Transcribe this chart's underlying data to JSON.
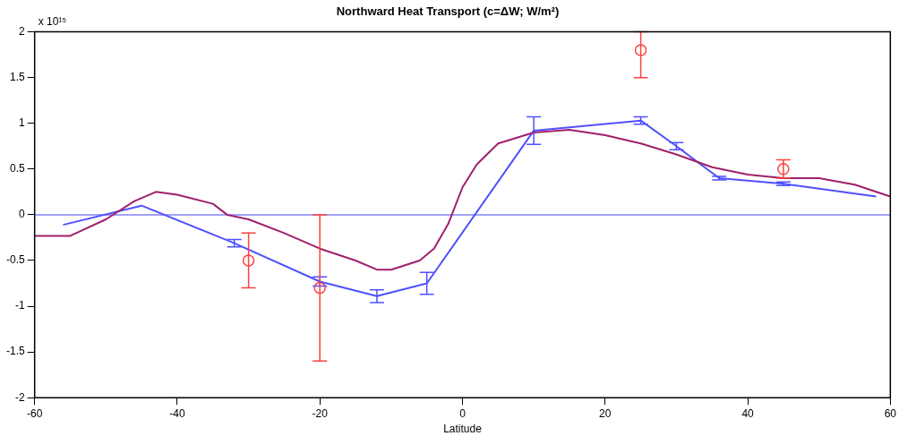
{
  "chart_data": {
    "type": "line",
    "title": "Northward Heat Transport (c=ΔW; W/m²)",
    "xlabel": "Latitude",
    "annotations": [
      "x 10¹⁵"
    ],
    "xlim": [
      -60,
      60
    ],
    "xticks": [
      -60,
      -40,
      -20,
      0,
      20,
      40,
      60
    ],
    "ylim": [
      -2,
      2
    ],
    "yticks": [
      -2,
      -1.5,
      -1,
      -0.5,
      0,
      0.5,
      1,
      1.5,
      2
    ],
    "grid": false,
    "legend": false,
    "ref_lines": [
      {
        "axis": "y",
        "value": 0,
        "color": "#8080ff"
      }
    ],
    "series": [
      {
        "color": "#a0206a",
        "marker": "none",
        "x": [
          -60,
          -55,
          -50,
          -46,
          -43,
          -40,
          -35,
          -33,
          -30,
          -25,
          -20,
          -15,
          -12,
          -10,
          -6,
          -4,
          -2,
          0,
          2,
          5,
          10,
          15,
          20,
          25,
          30,
          35,
          40,
          45,
          50,
          55,
          60
        ],
        "values": [
          -0.23,
          -0.23,
          -0.05,
          0.15,
          0.25,
          0.22,
          0.12,
          0,
          -0.05,
          -0.2,
          -0.37,
          -0.5,
          -0.6,
          -0.6,
          -0.5,
          -0.37,
          -0.1,
          0.3,
          0.55,
          0.78,
          0.9,
          0.93,
          0.87,
          0.78,
          0.66,
          0.52,
          0.44,
          0.4,
          0.4,
          0.33,
          0.2
        ]
      },
      {
        "color": "#5050ff",
        "marker": "none",
        "x": [
          -56,
          -45,
          -32,
          -20,
          -12,
          -5,
          10,
          25,
          30,
          36,
          45,
          58
        ],
        "values": [
          -0.11,
          0.1,
          -0.31,
          -0.73,
          -0.89,
          -0.75,
          0.92,
          1.03,
          0.75,
          0.4,
          0.34,
          0.2
        ],
        "errors": [
          null,
          null,
          0.04,
          0.05,
          0.07,
          0.12,
          0.15,
          0.04,
          0.04,
          0.02,
          0.02,
          null
        ]
      },
      {
        "type": "scatter",
        "color": "#ff4040",
        "marker": "circle",
        "x": [
          -30,
          -20,
          25,
          45
        ],
        "values": [
          -0.5,
          -0.8,
          1.8,
          0.5
        ],
        "errors": [
          0.3,
          0.8,
          [
            1.5,
            2
          ],
          0.1
        ]
      }
    ]
  }
}
